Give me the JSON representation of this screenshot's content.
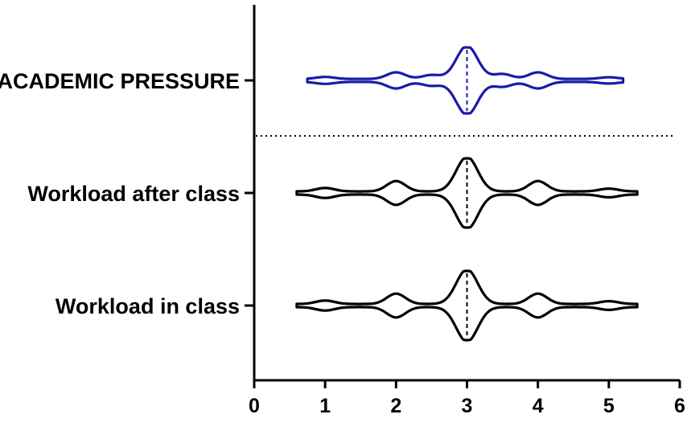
{
  "chart_data": {
    "type": "violin",
    "orientation": "horizontal",
    "xlim": [
      0,
      6
    ],
    "x_ticks": [
      "0",
      "1",
      "2",
      "3",
      "4",
      "5",
      "6"
    ],
    "grid": false,
    "legend": "none",
    "separator_line": "dotted, between ACADEMIC PRESSURE and Workload after class",
    "series": [
      {
        "name": "Workload in class",
        "color": "#000000",
        "range": [
          0.6,
          5.4
        ],
        "median": 3,
        "density": [
          [
            1,
            0.1
          ],
          [
            2,
            0.3
          ],
          [
            3,
            1.0
          ],
          [
            4,
            0.3
          ],
          [
            5,
            0.08
          ]
        ]
      },
      {
        "name": "Workload after class",
        "color": "#000000",
        "range": [
          0.6,
          5.4
        ],
        "median": 3,
        "density": [
          [
            1,
            0.1
          ],
          [
            2,
            0.3
          ],
          [
            3,
            1.0
          ],
          [
            4,
            0.3
          ],
          [
            5,
            0.08
          ]
        ]
      },
      {
        "name": "ACADEMIC PRESSURE",
        "color": "#1a1aaa",
        "range": [
          0.75,
          5.2
        ],
        "median": 3,
        "density": [
          [
            1,
            0.06
          ],
          [
            2,
            0.2
          ],
          [
            2.5,
            0.12
          ],
          [
            3,
            1.0
          ],
          [
            3.5,
            0.15
          ],
          [
            4,
            0.2
          ],
          [
            5,
            0.05
          ]
        ]
      }
    ]
  }
}
